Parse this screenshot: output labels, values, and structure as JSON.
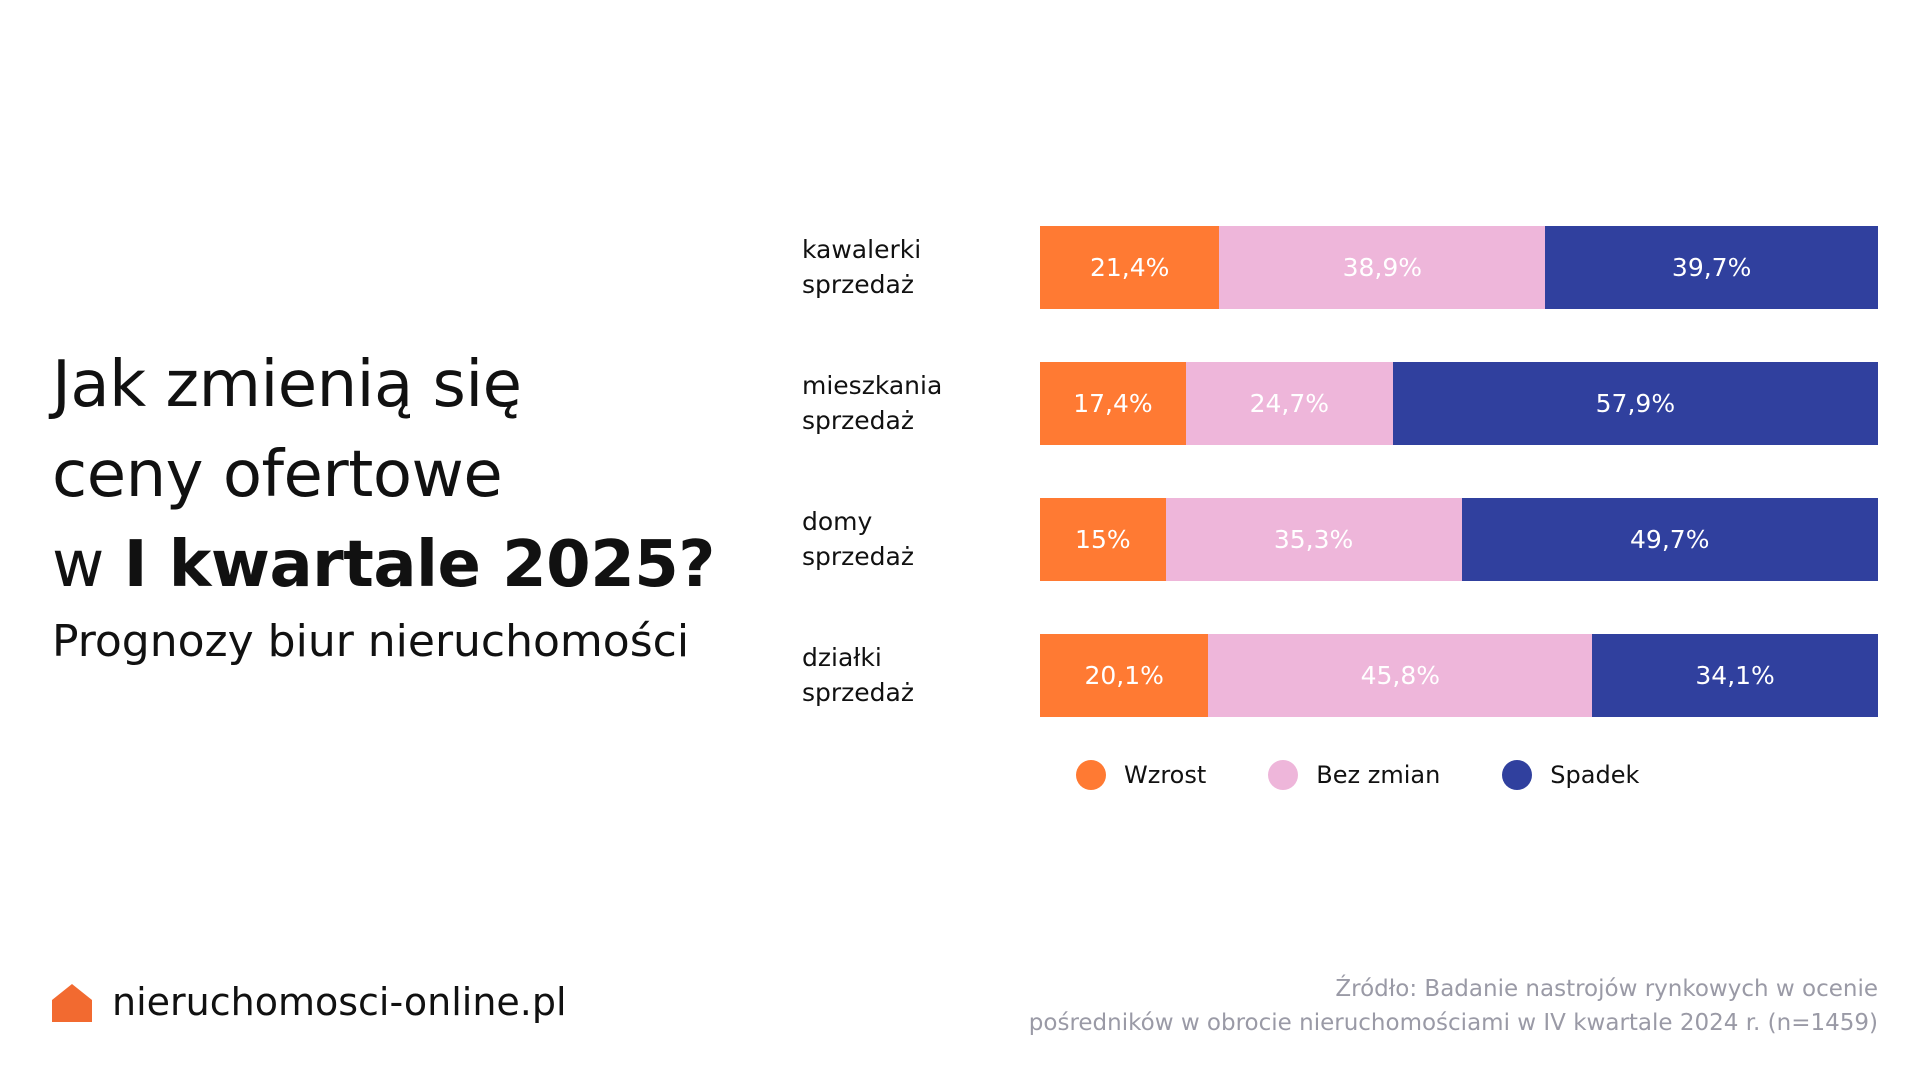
{
  "heading": {
    "line1": "Jak zmienią się",
    "line2": "ceny ofertowe",
    "line3_prefix": "w ",
    "line3_bold": "I kwartale 2025?",
    "subtitle": "Prognozy biur nieruchomości"
  },
  "colors": {
    "wzrost": "#FF7A33",
    "bez_zmian": "#EEB6DA",
    "spadek": "#30409E",
    "logo": "#F26A30"
  },
  "chart_data": {
    "type": "bar",
    "orientation": "horizontal",
    "stacked": true,
    "normalized": true,
    "categories": [
      [
        "kawalerki",
        "sprzedaż"
      ],
      [
        "mieszkania",
        "sprzedaż"
      ],
      [
        "domy",
        "sprzedaż"
      ],
      [
        "działki",
        "sprzedaż"
      ]
    ],
    "series": [
      {
        "name": "Wzrost",
        "values": [
          21.4,
          17.4,
          15,
          20.1
        ],
        "labels": [
          "21,4%",
          "17,4%",
          "15%",
          "20,1%"
        ],
        "color": "#FF7A33"
      },
      {
        "name": "Bez zmian",
        "values": [
          38.9,
          24.7,
          35.3,
          45.8
        ],
        "labels": [
          "38,9%",
          "24,7%",
          "35,3%",
          "45,8%"
        ],
        "color": "#EEB6DA"
      },
      {
        "name": "Spadek",
        "values": [
          39.7,
          57.9,
          49.7,
          34.1
        ],
        "labels": [
          "39,7%",
          "57,9%",
          "49,7%",
          "34,1%"
        ],
        "color": "#30409E"
      }
    ],
    "legend_position": "bottom",
    "grid": false
  },
  "footer": {
    "logo_text": "nieruchomosci-online.pl",
    "logo_icon": "house-icon",
    "source_line1": "Źródło: Badanie nastrojów rynkowych w ocenie",
    "source_line2": "pośredników w obrocie nieruchomościami w IV kwartale 2024 r. (n=1459)"
  }
}
